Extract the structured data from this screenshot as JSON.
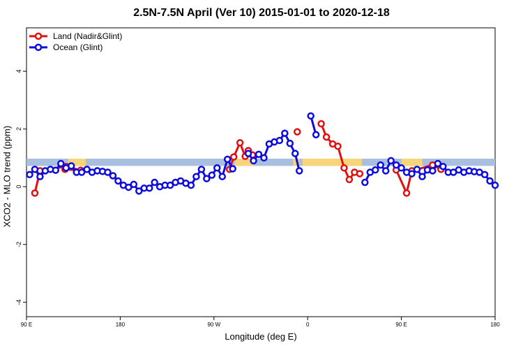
{
  "chart_data": {
    "type": "line",
    "title": "2.5N-7.5N April (Ver 10)   2015-01-01 to 2020-12-18",
    "xlabel": "Longitude (deg E)",
    "ylabel": "XCO2 - MLO trend (ppm)",
    "x_ticks": [
      "90 E",
      "180",
      "90 W",
      "0",
      "90 E",
      "180"
    ],
    "y_ticks": [
      "-4",
      "-2",
      "0",
      "2",
      "4"
    ],
    "ylim": [
      -4.5,
      5.5
    ],
    "x_range": [
      0,
      450
    ],
    "grid": false,
    "legend_position": "top-left",
    "band": {
      "y_low": 0.72,
      "y_high": 0.97,
      "color": "#a9bfdf",
      "land_color": "#f8d57a"
    },
    "series": [
      {
        "name": "Land (Nadir&Glint)",
        "color": "#e01010",
        "points": [
          [
            [
              8,
              -0.22
            ],
            [
              13,
              0.55
            ],
            [
              38,
              0.7
            ],
            [
              52,
              0.57
            ],
            [
              37,
              0.6
            ]
          ],
          [
            [
              195,
              0.6
            ],
            [
              199,
              1.03
            ],
            [
              205,
              1.52
            ],
            [
              210,
              1.05
            ],
            [
              213,
              1.25
            ],
            [
              217,
              1.1
            ]
          ],
          [
            [
              260,
              1.9
            ]
          ],
          [
            [
              283,
              2.18
            ],
            [
              288,
              1.72
            ],
            [
              294,
              1.48
            ],
            [
              299,
              1.4
            ],
            [
              305,
              0.65
            ],
            [
              310,
              0.25
            ],
            [
              315,
              0.5
            ],
            [
              320,
              0.45
            ]
          ],
          [
            [
              355,
              0.58
            ],
            [
              365,
              -0.22
            ],
            [
              370,
              0.55
            ],
            [
              390,
              0.75
            ],
            [
              398,
              0.6
            ]
          ]
        ]
      },
      {
        "name": "Ocean (Glint)",
        "color": "#0b0bde",
        "points": [
          [
            [
              3,
              0.42
            ],
            [
              8,
              0.6
            ],
            [
              13,
              0.35
            ],
            [
              18,
              0.55
            ],
            [
              23,
              0.6
            ],
            [
              28,
              0.57
            ],
            [
              33,
              0.8
            ],
            [
              38,
              0.65
            ],
            [
              43,
              0.72
            ],
            [
              48,
              0.5
            ],
            [
              53,
              0.5
            ],
            [
              58,
              0.6
            ],
            [
              63,
              0.5
            ],
            [
              68,
              0.55
            ],
            [
              73,
              0.53
            ],
            [
              78,
              0.5
            ],
            [
              83,
              0.38
            ],
            [
              88,
              0.2
            ],
            [
              93,
              0.05
            ],
            [
              98,
              -0.02
            ],
            [
              103,
              0.08
            ],
            [
              108,
              -0.15
            ],
            [
              113,
              -0.05
            ],
            [
              118,
              -0.05
            ],
            [
              123,
              0.15
            ],
            [
              128,
              0.0
            ],
            [
              133,
              0.05
            ],
            [
              138,
              0.05
            ],
            [
              143,
              0.15
            ],
            [
              148,
              0.2
            ],
            [
              153,
              0.12
            ],
            [
              158,
              0.05
            ],
            [
              163,
              0.35
            ],
            [
              168,
              0.6
            ],
            [
              173,
              0.28
            ],
            [
              178,
              0.4
            ],
            [
              183,
              0.65
            ],
            [
              188,
              0.35
            ],
            [
              193,
              0.95
            ],
            [
              198,
              0.62
            ]
          ],
          [
            [
              213,
              1.15
            ],
            [
              218,
              0.9
            ],
            [
              223,
              1.12
            ],
            [
              228,
              1.0
            ],
            [
              233,
              1.48
            ],
            [
              238,
              1.55
            ],
            [
              243,
              1.6
            ],
            [
              248,
              1.85
            ],
            [
              253,
              1.5
            ],
            [
              258,
              1.15
            ],
            [
              262,
              0.55
            ]
          ],
          [
            [
              273,
              2.45
            ],
            [
              278,
              1.8
            ]
          ],
          [
            [
              325,
              0.15
            ],
            [
              330,
              0.5
            ],
            [
              335,
              0.58
            ],
            [
              340,
              0.75
            ],
            [
              345,
              0.55
            ],
            [
              350,
              0.9
            ],
            [
              355,
              0.75
            ],
            [
              360,
              0.65
            ],
            [
              365,
              0.5
            ],
            [
              370,
              0.45
            ],
            [
              375,
              0.6
            ],
            [
              380,
              0.35
            ],
            [
              385,
              0.58
            ],
            [
              390,
              0.55
            ],
            [
              395,
              0.8
            ],
            [
              400,
              0.7
            ],
            [
              405,
              0.5
            ],
            [
              410,
              0.5
            ],
            [
              415,
              0.58
            ],
            [
              420,
              0.5
            ],
            [
              425,
              0.55
            ],
            [
              430,
              0.52
            ],
            [
              435,
              0.5
            ],
            [
              440,
              0.42
            ],
            [
              445,
              0.2
            ],
            [
              450,
              0.05
            ]
          ]
        ]
      }
    ]
  }
}
